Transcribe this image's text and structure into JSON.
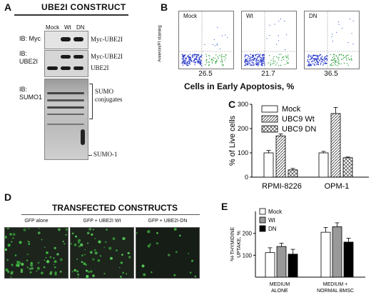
{
  "panel_a": {
    "letter": "A",
    "title": "UBE2I CONSTRUCT",
    "lanes": [
      "Mock",
      "Wt",
      "DN"
    ],
    "blots": [
      {
        "ib": "IB: Myc",
        "bands": [
          "Myc-UBE2I"
        ]
      },
      {
        "ib": "IB:\nUBE2I",
        "bands": [
          "Myc-UBE2I",
          "UBE2I"
        ]
      },
      {
        "ib": "IB:\nSUMO1",
        "bands": [
          "SUMO\nconjugates",
          "SUMO-1"
        ]
      }
    ]
  },
  "panel_b": {
    "letter": "B",
    "plots": [
      {
        "label": "Mock",
        "value": "26.5"
      },
      {
        "label": "Wt",
        "value": "21.7"
      },
      {
        "label": "DN",
        "value": "36.5"
      }
    ],
    "ylabel": "Annexin/PI staining",
    "xlabel": "Cells in Early Apoptosis, %"
  },
  "panel_c": {
    "letter": "C"
  },
  "panel_d": {
    "letter": "D",
    "title": "TRANSFECTED CONSTRUCTS",
    "images": [
      "GFP alone",
      "GFP + UBE2I Wt",
      "GFP + UBE2I-DN"
    ]
  },
  "panel_e": {
    "letter": "E"
  },
  "chart_data": [
    {
      "type": "bar",
      "ylabel": "% of Live cells",
      "categories": [
        "RPMI-8226",
        "OPM-1"
      ],
      "series": [
        {
          "name": "Mock",
          "values": [
            100,
            100
          ],
          "errors": [
            10,
            6
          ]
        },
        {
          "name": "UBC9 Wt",
          "values": [
            170,
            262
          ],
          "errors": [
            8,
            25
          ]
        },
        {
          "name": "UBC9 DN",
          "values": [
            30,
            80
          ],
          "errors": [
            6,
            3
          ]
        }
      ],
      "ylim": [
        0,
        300
      ],
      "yticks": [
        0,
        100,
        200,
        300
      ],
      "legend": "top-left"
    },
    {
      "type": "bar",
      "ylabel": "³H-THYMIDINE\nUPTAKE, %",
      "categories": [
        "MEDIUM\nALONE",
        "MEDIUM +\nNORMAL BMSC"
      ],
      "series": [
        {
          "name": "Mock",
          "values": [
            112,
            205
          ],
          "errors": [
            22,
            22
          ],
          "color": "#ffffff"
        },
        {
          "name": "Wt",
          "values": [
            140,
            230
          ],
          "errors": [
            15,
            18
          ],
          "color": "#999999"
        },
        {
          "name": "DN",
          "values": [
            105,
            160
          ],
          "errors": [
            22,
            18
          ],
          "color": "#000000"
        }
      ],
      "ylim": [
        0,
        300
      ],
      "yticks": [
        100,
        200
      ],
      "legend": "top-left"
    }
  ]
}
